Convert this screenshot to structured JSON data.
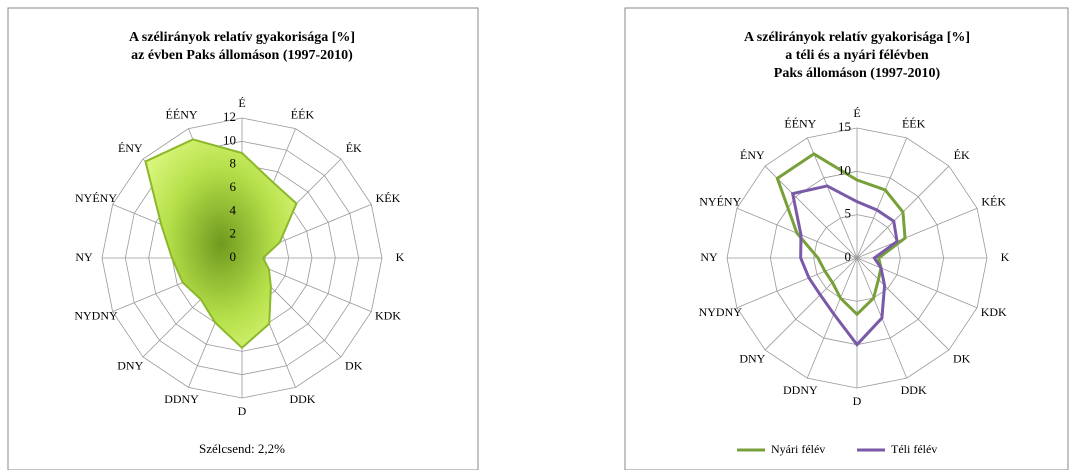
{
  "chart_data": [
    {
      "type": "radar",
      "title": "A szélirányok relatív gyakorisága [%]",
      "subtitle": "az évben Paks állomáson (1997-2010)",
      "categories": [
        "É",
        "ÉÉK",
        "ÉK",
        "KÉK",
        "K",
        "KDK",
        "DK",
        "DDK",
        "D",
        "DDNY",
        "DNY",
        "NYDNY",
        "NY",
        "NYÉNY",
        "ÉNY",
        "ÉÉNY"
      ],
      "values": [
        9,
        7,
        6.6,
        3.5,
        1.8,
        2.5,
        3.5,
        6.1,
        7.7,
        6,
        5,
        5.5,
        6,
        7.5,
        11.7,
        11
      ],
      "color": "#a6d63a",
      "ylim": [
        0,
        12
      ],
      "yticks": [
        0,
        2,
        4,
        6,
        8,
        10,
        12
      ],
      "annotation": "Szélcsend: 2,2%"
    },
    {
      "type": "radar",
      "title": "A szélirányok relatív gyakorisága [%]",
      "subtitle": "a téli és a nyári félévben",
      "subtitle2": "Paks állomáson (1997-2010)",
      "categories": [
        "É",
        "ÉÉK",
        "ÉK",
        "KÉK",
        "K",
        "KDK",
        "DK",
        "DDK",
        "D",
        "DDNY",
        "DNY",
        "NYDNY",
        "NY",
        "NYÉNY",
        "ÉNY",
        "ÉÉNY"
      ],
      "series": [
        {
          "name": "Nyári félév",
          "color": "#77a03a",
          "values": [
            9,
            8.5,
            7.5,
            6,
            2.5,
            3,
            3.5,
            5,
            6.5,
            5,
            4,
            4,
            4.5,
            7.5,
            13,
            13
          ]
        },
        {
          "name": "Téli félév",
          "color": "#7a5aa8",
          "values": [
            6.5,
            6,
            6,
            5,
            2,
            3,
            4.5,
            7.5,
            10,
            7,
            6,
            6,
            6.5,
            7,
            10.5,
            9
          ]
        }
      ],
      "ylim": [
        0,
        15
      ],
      "yticks": [
        0,
        5,
        10,
        15
      ],
      "legend": "bottom"
    }
  ]
}
